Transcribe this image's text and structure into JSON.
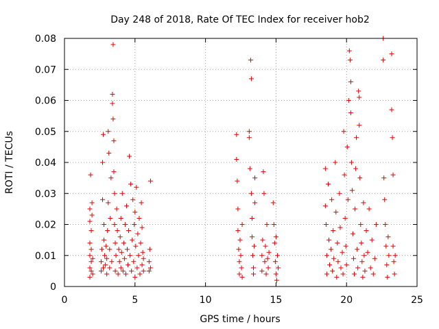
{
  "chart_data": {
    "type": "scatter",
    "title": "Day 248 of 2018, Rate Of TEC Index for receiver hob2",
    "xlabel": "GPS time / hours",
    "ylabel": "ROTI / TECUs",
    "xlim": [
      0,
      25
    ],
    "ylim": [
      0,
      0.08
    ],
    "x_ticks": [
      0,
      5,
      10,
      15,
      20,
      25
    ],
    "x_tick_labels": [
      "0",
      "5",
      "10",
      "15",
      "20",
      "25"
    ],
    "y_ticks": [
      0,
      0.01,
      0.02,
      0.03,
      0.04,
      0.05,
      0.06,
      0.07,
      0.08
    ],
    "y_tick_labels": [
      "0",
      "0.01",
      "0.02",
      "0.03",
      "0.04",
      "0.05",
      "0.06",
      "0.07",
      "0.08"
    ],
    "grid": true,
    "marker": "plus",
    "marker_color": "#e00000",
    "series": [
      {
        "points": [
          [
            1.8,
            0.003
          ],
          [
            1.8,
            0.006
          ],
          [
            1.8,
            0.01
          ],
          [
            1.8,
            0.014
          ],
          [
            1.8,
            0.021
          ],
          [
            1.8,
            0.025
          ],
          [
            1.85,
            0.036
          ],
          [
            1.9,
            0.005
          ],
          [
            1.9,
            0.008
          ],
          [
            1.9,
            0.012
          ],
          [
            1.9,
            0.018
          ],
          [
            1.95,
            0.023
          ],
          [
            1.95,
            0.027
          ],
          [
            2.0,
            0.004
          ],
          [
            2.0,
            0.009
          ],
          [
            2.6,
            0.005
          ],
          [
            2.6,
            0.008
          ],
          [
            2.65,
            0.012
          ],
          [
            2.7,
            0.04
          ],
          [
            2.7,
            0.028
          ],
          [
            2.75,
            0.049
          ],
          [
            2.75,
            0.006
          ],
          [
            2.8,
            0.015
          ],
          [
            2.8,
            0.02
          ],
          [
            2.85,
            0.01
          ],
          [
            2.9,
            0.007
          ],
          [
            2.95,
            0.013
          ],
          [
            3.0,
            0.004
          ],
          [
            3.0,
            0.009
          ],
          [
            3.05,
            0.018
          ],
          [
            3.1,
            0.05
          ],
          [
            3.1,
            0.027
          ],
          [
            3.15,
            0.043
          ],
          [
            3.2,
            0.006
          ],
          [
            3.2,
            0.012
          ],
          [
            3.25,
            0.022
          ],
          [
            3.3,
            0.035
          ],
          [
            3.35,
            0.008
          ],
          [
            3.4,
            0.062
          ],
          [
            3.4,
            0.059
          ],
          [
            3.45,
            0.078
          ],
          [
            3.45,
            0.054
          ],
          [
            3.5,
            0.047
          ],
          [
            3.5,
            0.037
          ],
          [
            3.55,
            0.03
          ],
          [
            3.55,
            0.02
          ],
          [
            3.6,
            0.014
          ],
          [
            3.6,
            0.005
          ],
          [
            3.65,
            0.01
          ],
          [
            3.7,
            0.025
          ],
          [
            3.75,
            0.018
          ],
          [
            3.8,
            0.004
          ],
          [
            3.85,
            0.012
          ],
          [
            3.9,
            0.008
          ],
          [
            3.95,
            0.016
          ],
          [
            4.0,
            0.006
          ],
          [
            4.0,
            0.022
          ],
          [
            4.05,
            0.011
          ],
          [
            4.1,
            0.03
          ],
          [
            4.15,
            0.005
          ],
          [
            4.2,
            0.014
          ],
          [
            4.25,
            0.009
          ],
          [
            4.3,
            0.02
          ],
          [
            4.35,
            0.004
          ],
          [
            4.4,
            0.026
          ],
          [
            4.45,
            0.012
          ],
          [
            4.5,
            0.007
          ],
          [
            4.55,
            0.018
          ],
          [
            4.6,
            0.042
          ],
          [
            4.65,
            0.01
          ],
          [
            4.7,
            0.033
          ],
          [
            4.75,
            0.005
          ],
          [
            4.8,
            0.015
          ],
          [
            4.85,
            0.028
          ],
          [
            4.9,
            0.008
          ],
          [
            4.95,
            0.02
          ],
          [
            5.0,
            0.003
          ],
          [
            5.0,
            0.024
          ],
          [
            5.05,
            0.013
          ],
          [
            5.1,
            0.032
          ],
          [
            5.15,
            0.006
          ],
          [
            5.2,
            0.017
          ],
          [
            5.25,
            0.01
          ],
          [
            5.3,
            0.022
          ],
          [
            5.35,
            0.004
          ],
          [
            5.4,
            0.014
          ],
          [
            5.45,
            0.027
          ],
          [
            5.5,
            0.007
          ],
          [
            5.5,
            0.019
          ],
          [
            5.55,
            0.011
          ],
          [
            5.6,
            0.005
          ],
          [
            5.6,
            0.009
          ],
          [
            6.0,
            0.005
          ],
          [
            6.0,
            0.008
          ],
          [
            6.05,
            0.012
          ],
          [
            6.1,
            0.034
          ],
          [
            6.1,
            0.006
          ],
          [
            12.2,
            0.049
          ],
          [
            12.2,
            0.041
          ],
          [
            12.25,
            0.034
          ],
          [
            12.3,
            0.025
          ],
          [
            12.3,
            0.018
          ],
          [
            12.35,
            0.012
          ],
          [
            12.4,
            0.008
          ],
          [
            12.4,
            0.004
          ],
          [
            12.45,
            0.015
          ],
          [
            12.5,
            0.01
          ],
          [
            12.55,
            0.006
          ],
          [
            12.6,
            0.02
          ],
          [
            12.6,
            0.003
          ],
          [
            13.1,
            0.05
          ],
          [
            13.1,
            0.048
          ],
          [
            13.15,
            0.038
          ],
          [
            13.2,
            0.073
          ],
          [
            13.25,
            0.067
          ],
          [
            13.25,
            0.03
          ],
          [
            13.3,
            0.022
          ],
          [
            13.3,
            0.016
          ],
          [
            13.35,
            0.01
          ],
          [
            13.4,
            0.006
          ],
          [
            13.4,
            0.004
          ],
          [
            13.45,
            0.013
          ],
          [
            13.5,
            0.027
          ],
          [
            13.5,
            0.035
          ],
          [
            14.0,
            0.005
          ],
          [
            14.0,
            0.01
          ],
          [
            14.05,
            0.015
          ],
          [
            14.1,
            0.037
          ],
          [
            14.15,
            0.03
          ],
          [
            14.2,
            0.008
          ],
          [
            14.25,
            0.013
          ],
          [
            14.3,
            0.004
          ],
          [
            14.35,
            0.02
          ],
          [
            14.4,
            0.009
          ],
          [
            14.45,
            0.006
          ],
          [
            14.5,
            0.011
          ],
          [
            14.8,
            0.027
          ],
          [
            14.85,
            0.02
          ],
          [
            14.9,
            0.014
          ],
          [
            14.95,
            0.008
          ],
          [
            15.0,
            0.004
          ],
          [
            15.0,
            0.016
          ],
          [
            15.05,
            0.002
          ],
          [
            15.1,
            0.01
          ],
          [
            15.15,
            0.006
          ],
          [
            18.5,
            0.038
          ],
          [
            18.5,
            0.026
          ],
          [
            18.55,
            0.02
          ],
          [
            18.6,
            0.01
          ],
          [
            18.6,
            0.004
          ],
          [
            18.7,
            0.033
          ],
          [
            18.75,
            0.015
          ],
          [
            18.8,
            0.007
          ],
          [
            18.9,
            0.012
          ],
          [
            18.95,
            0.028
          ],
          [
            19.0,
            0.005
          ],
          [
            19.05,
            0.018
          ],
          [
            19.1,
            0.009
          ],
          [
            19.2,
            0.04
          ],
          [
            19.25,
            0.024
          ],
          [
            19.3,
            0.003
          ],
          [
            19.35,
            0.014
          ],
          [
            19.4,
            0.008
          ],
          [
            19.5,
            0.03
          ],
          [
            19.55,
            0.019
          ],
          [
            19.6,
            0.006
          ],
          [
            19.7,
            0.011
          ],
          [
            19.75,
            0.004
          ],
          [
            19.8,
            0.05
          ],
          [
            19.85,
            0.036
          ],
          [
            19.9,
            0.022
          ],
          [
            19.95,
            0.013
          ],
          [
            20.0,
            0.007
          ],
          [
            20.05,
            0.045
          ],
          [
            20.1,
            0.028
          ],
          [
            20.15,
            0.06
          ],
          [
            20.2,
            0.076
          ],
          [
            20.25,
            0.073
          ],
          [
            20.3,
            0.066
          ],
          [
            20.3,
            0.056
          ],
          [
            20.35,
            0.04
          ],
          [
            20.4,
            0.031
          ],
          [
            20.45,
            0.017
          ],
          [
            20.5,
            0.009
          ],
          [
            20.55,
            0.004
          ],
          [
            20.6,
            0.025
          ],
          [
            20.65,
            0.038
          ],
          [
            20.7,
            0.048
          ],
          [
            20.75,
            0.012
          ],
          [
            20.8,
            0.006
          ],
          [
            20.85,
            0.063
          ],
          [
            20.9,
            0.061
          ],
          [
            20.9,
            0.052
          ],
          [
            20.95,
            0.035
          ],
          [
            21.0,
            0.02
          ],
          [
            21.05,
            0.014
          ],
          [
            21.1,
            0.008
          ],
          [
            21.15,
            0.003
          ],
          [
            21.2,
            0.027
          ],
          [
            21.25,
            0.01
          ],
          [
            21.3,
            0.005
          ],
          [
            21.4,
            0.018
          ],
          [
            21.5,
            0.011
          ],
          [
            21.6,
            0.025
          ],
          [
            21.7,
            0.006
          ],
          [
            21.8,
            0.015
          ],
          [
            21.9,
            0.004
          ],
          [
            22.0,
            0.009
          ],
          [
            22.1,
            0.02
          ],
          [
            22.6,
            0.08
          ],
          [
            22.6,
            0.073
          ],
          [
            22.65,
            0.035
          ],
          [
            22.7,
            0.028
          ],
          [
            22.75,
            0.02
          ],
          [
            22.8,
            0.013
          ],
          [
            22.85,
            0.007
          ],
          [
            22.9,
            0.003
          ],
          [
            22.95,
            0.016
          ],
          [
            23.0,
            0.01
          ],
          [
            23.2,
            0.075
          ],
          [
            23.2,
            0.057
          ],
          [
            23.25,
            0.048
          ],
          [
            23.3,
            0.036
          ],
          [
            23.3,
            0.013
          ],
          [
            23.35,
            0.008
          ],
          [
            23.4,
            0.004
          ],
          [
            23.45,
            0.01
          ]
        ]
      }
    ]
  }
}
